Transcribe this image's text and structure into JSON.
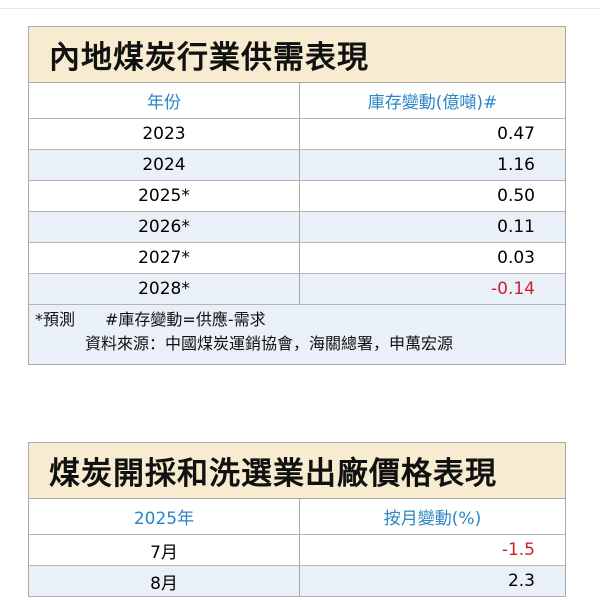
{
  "table1": {
    "title": "內地煤炭行業供需表現",
    "headers": [
      "年份",
      "庫存變動(億噸)#"
    ],
    "rows": [
      {
        "year": "2023",
        "value": "0.47"
      },
      {
        "year": "2024",
        "value": "1.16"
      },
      {
        "year": "2025*",
        "value": "0.50"
      },
      {
        "year": "2026*",
        "value": "0.11"
      },
      {
        "year": "2027*",
        "value": "0.03"
      },
      {
        "year": "2028*",
        "value": "-0.14"
      }
    ],
    "note_forecast": "*預測",
    "note_formula": "#庫存變動=供應-需求",
    "source": "資料來源：中國煤炭運銷協會，海關總署，申萬宏源"
  },
  "table2": {
    "title": "煤炭開採和洗選業出廠價格表現",
    "headers": [
      "2025年",
      "按月變動(%)"
    ],
    "rows": [
      {
        "month": "7月",
        "value": "-1.5"
      },
      {
        "month": "8月",
        "value": "2.3"
      }
    ]
  },
  "colors": {
    "title_bg": "#f7ecd0",
    "header_text": "#2b86c5",
    "negative": "#d0202a",
    "alt_row": "#e9f0f8"
  }
}
